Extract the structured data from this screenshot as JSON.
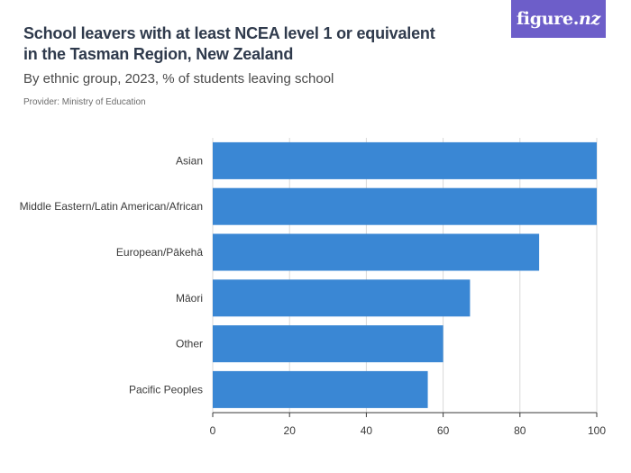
{
  "header": {
    "title": "School leavers with at least NCEA level 1 or equivalent in the Tasman Region, New Zealand",
    "subtitle": "By ethnic group, 2023, % of students leaving school",
    "provider": "Provider: Ministry of Education"
  },
  "logo": {
    "text_main": "figure.",
    "text_nz": "nz",
    "background": "#6d5ec9"
  },
  "colors": {
    "bar": "#3a87d4",
    "grid": "#d9d9d9",
    "axis": "#3a3a3a"
  },
  "chart_data": {
    "type": "bar",
    "orientation": "horizontal",
    "categories": [
      "Asian",
      "Middle Eastern/Latin American/African",
      "European/Pākehā",
      "Māori",
      "Other",
      "Pacific Peoples"
    ],
    "values": [
      100,
      100,
      85,
      67,
      60,
      56
    ],
    "xlim": [
      0,
      100
    ],
    "xticks": [
      0,
      20,
      40,
      60,
      80,
      100
    ],
    "grid": true
  }
}
